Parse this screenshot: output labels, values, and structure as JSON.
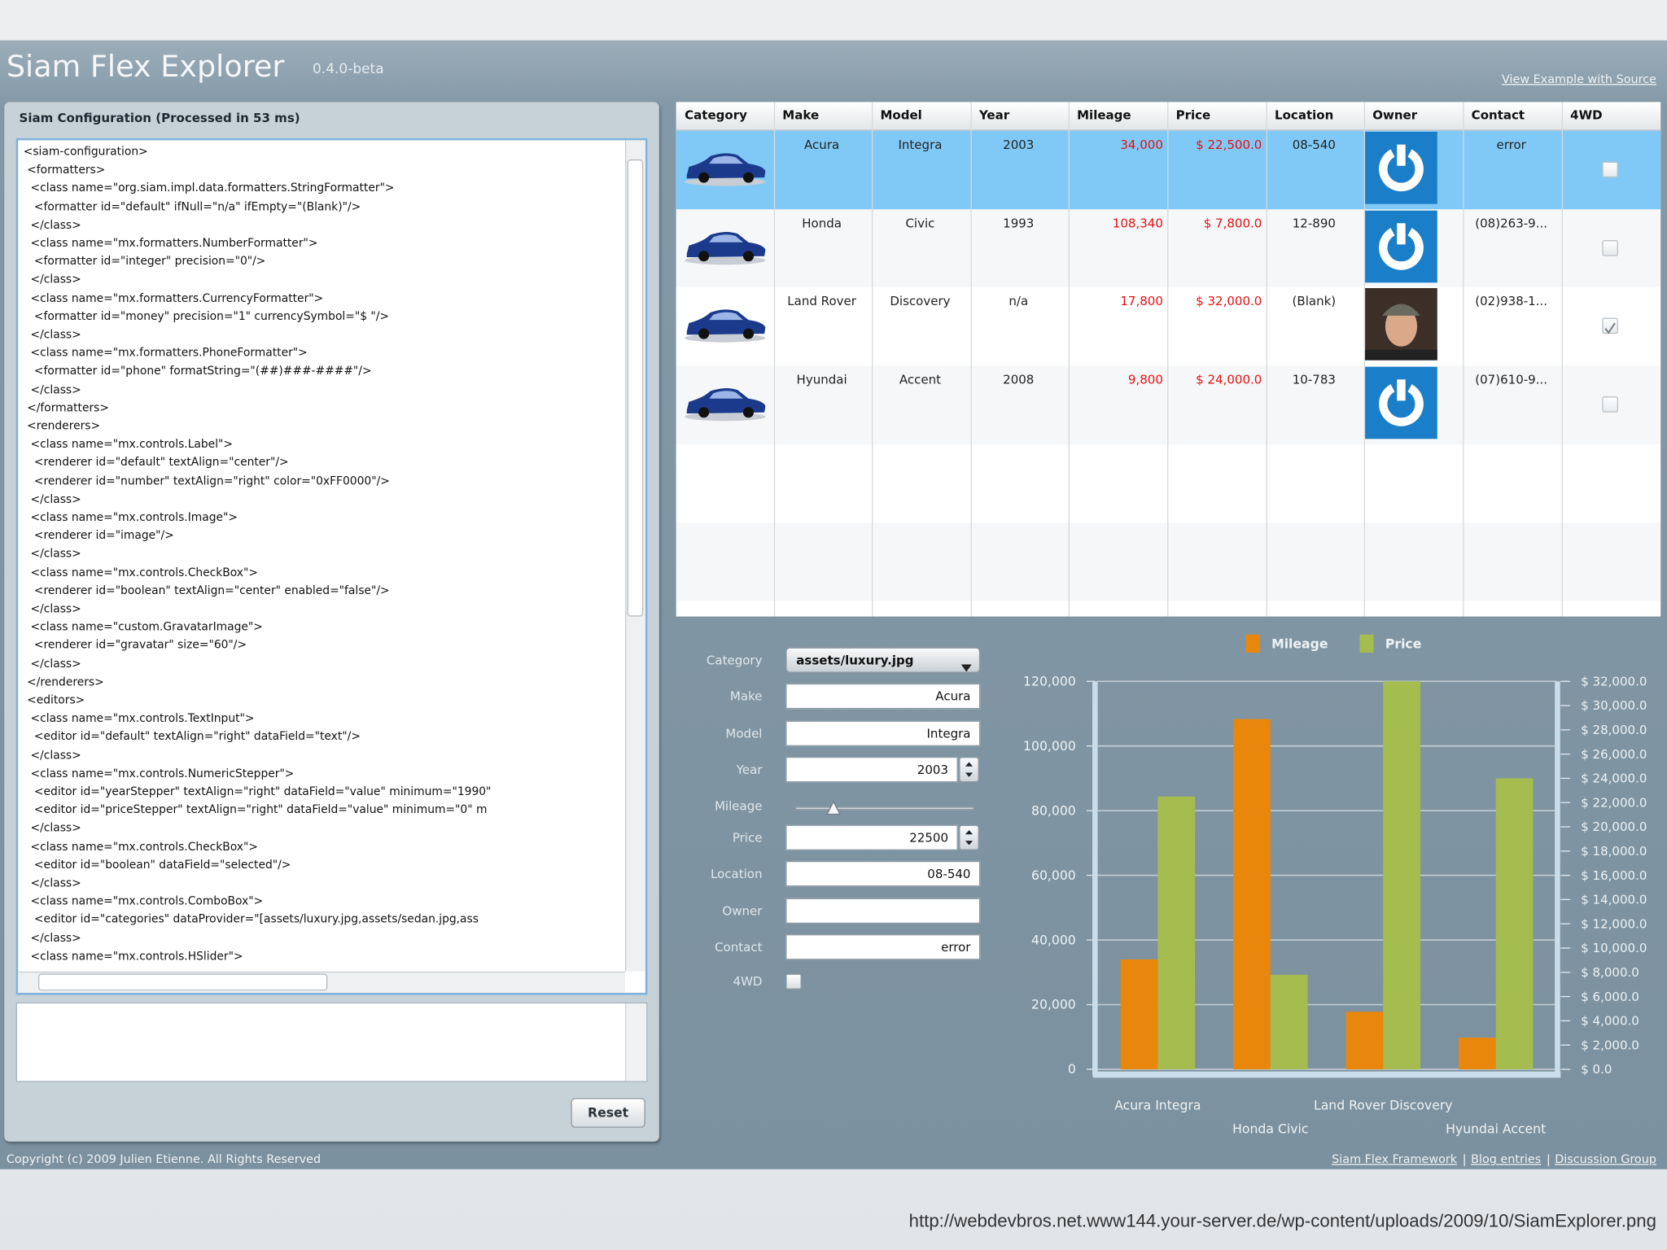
{
  "header": {
    "title": "Siam Flex Explorer",
    "version": "0.4.0-beta",
    "source_link": "View Example with Source"
  },
  "config_panel": {
    "title": "Siam Configuration (Processed in 53 ms)",
    "xml_lines": [
      "<siam-configuration>",
      " <formatters>",
      "  <class name=\"org.siam.impl.data.formatters.StringFormatter\">",
      "   <formatter id=\"default\" ifNull=\"n/a\" ifEmpty=\"(Blank)\"/>",
      "  </class>",
      "  <class name=\"mx.formatters.NumberFormatter\">",
      "   <formatter id=\"integer\" precision=\"0\"/>",
      "  </class>",
      "  <class name=\"mx.formatters.CurrencyFormatter\">",
      "   <formatter id=\"money\" precision=\"1\" currencySymbol=\"$ \"/>",
      "  </class>",
      "  <class name=\"mx.formatters.PhoneFormatter\">",
      "   <formatter id=\"phone\" formatString=\"(##)###-####\"/>",
      "  </class>",
      " </formatters>",
      " <renderers>",
      "  <class name=\"mx.controls.Label\">",
      "   <renderer id=\"default\" textAlign=\"center\"/>",
      "   <renderer id=\"number\" textAlign=\"right\" color=\"0xFF0000\"/>",
      "  </class>",
      "  <class name=\"mx.controls.Image\">",
      "   <renderer id=\"image\"/>",
      "  </class>",
      "  <class name=\"mx.controls.CheckBox\">",
      "   <renderer id=\"boolean\" textAlign=\"center\" enabled=\"false\"/>",
      "  </class>",
      "  <class name=\"custom.GravatarImage\">",
      "   <renderer id=\"gravatar\" size=\"60\"/>",
      "  </class>",
      " </renderers>",
      " <editors>",
      "  <class name=\"mx.controls.TextInput\">",
      "   <editor id=\"default\" textAlign=\"right\" dataField=\"text\"/>",
      "  </class>",
      "  <class name=\"mx.controls.NumericStepper\">",
      "   <editor id=\"yearStepper\" textAlign=\"right\" dataField=\"value\" minimum=\"1990\"",
      "   <editor id=\"priceStepper\" textAlign=\"right\" dataField=\"value\" minimum=\"0\" m",
      "  </class>",
      "  <class name=\"mx.controls.CheckBox\">",
      "   <editor id=\"boolean\" dataField=\"selected\"/>",
      "  </class>",
      "  <class name=\"mx.controls.ComboBox\">",
      "   <editor id=\"categories\" dataProvider=\"[assets/luxury.jpg,assets/sedan.jpg,ass",
      "  </class>",
      "  <class name=\"mx.controls.HSlider\">"
    ],
    "reset_button": "Reset"
  },
  "table": {
    "columns": [
      "Category",
      "Make",
      "Model",
      "Year",
      "Mileage",
      "Price",
      "Location",
      "Owner",
      "Contact",
      "4WD"
    ],
    "selected_row": 0,
    "rows": [
      {
        "make": "Acura",
        "model": "Integra",
        "year": "2003",
        "mileage": "34,000",
        "price": "$ 22,500.0",
        "location": "08-540",
        "contact": "error",
        "four_wd": false
      },
      {
        "make": "Honda",
        "model": "Civic",
        "year": "1993",
        "mileage": "108,340",
        "price": "$ 7,800.0",
        "location": "12-890",
        "contact": "(08)263-9...",
        "four_wd": false
      },
      {
        "make": "Land Rover",
        "model": "Discovery",
        "year": "n/a",
        "mileage": "17,800",
        "price": "$ 32,000.0",
        "location": "(Blank)",
        "contact": "(02)938-1...",
        "four_wd": true
      },
      {
        "make": "Hyundai",
        "model": "Accent",
        "year": "2008",
        "mileage": "9,800",
        "price": "$ 24,000.0",
        "location": "10-783",
        "contact": "(07)610-9...",
        "four_wd": false
      }
    ]
  },
  "form": {
    "fields": [
      {
        "label": "Category",
        "value": "assets/luxury.jpg"
      },
      {
        "label": "Make",
        "value": "Acura"
      },
      {
        "label": "Model",
        "value": "Integra"
      },
      {
        "label": "Year",
        "value": "2003"
      },
      {
        "label": "Mileage"
      },
      {
        "label": "Price",
        "value": "22500"
      },
      {
        "label": "Location",
        "value": "08-540"
      },
      {
        "label": "Owner"
      },
      {
        "label": "Contact",
        "value": "error"
      },
      {
        "label": "4WD"
      }
    ]
  },
  "chart_data": {
    "type": "bar",
    "categories": [
      "Acura Integra",
      "Honda Civic",
      "Land Rover Discovery",
      "Hyundai Accent"
    ],
    "series": [
      {
        "name": "Mileage",
        "color": "#e8870c",
        "values": [
          34000,
          108340,
          17800,
          9800
        ]
      },
      {
        "name": "Price",
        "color": "#a5bd4f",
        "axis": "y2",
        "values": [
          22500,
          7800,
          32000,
          24000
        ]
      }
    ],
    "ylim": [
      0,
      120000
    ],
    "yticks": [
      0,
      {
        "value": 20000,
        "label": "20,000"
      },
      {
        "value": 40000,
        "label": "40,000"
      },
      {
        "value": 60000,
        "label": "60,000"
      },
      {
        "value": 80000,
        "label": "80,000"
      },
      {
        "value": 100000,
        "label": "100,000"
      },
      {
        "value": 120000,
        "label": "120,000"
      }
    ],
    "y2lim": [
      0,
      32000
    ],
    "y2ticks": [
      {
        "value": 0,
        "label": "$ 0.0"
      },
      {
        "value": 2000,
        "label": "$ 2,000.0"
      },
      {
        "value": 4000,
        "label": "$ 4,000.0"
      },
      {
        "value": 6000,
        "label": "$ 6,000.0"
      },
      {
        "value": 8000,
        "label": "$ 8,000.0"
      },
      {
        "value": 10000,
        "label": "$ 10,000.0"
      },
      {
        "value": 12000,
        "label": "$ 12,000.0"
      },
      {
        "value": 14000,
        "label": "$ 14,000.0"
      },
      {
        "value": 16000,
        "label": "$ 16,000.0"
      },
      {
        "value": 18000,
        "label": "$ 18,000.0"
      },
      {
        "value": 20000,
        "label": "$ 20,000.0"
      },
      {
        "value": 22000,
        "label": "$ 22,000.0"
      },
      {
        "value": 24000,
        "label": "$ 24,000.0"
      },
      {
        "value": 26000,
        "label": "$ 26,000.0"
      },
      {
        "value": 28000,
        "label": "$ 28,000.0"
      },
      {
        "value": 30000,
        "label": "$ 30,000.0"
      },
      {
        "value": 32000,
        "label": "$ 32,000.0"
      }
    ],
    "grid": true,
    "legend": "top"
  },
  "footer": {
    "copyright": "Copyright (c) 2009 Julien Etienne. All Rights Reserved",
    "links": [
      "Siam Flex Framework",
      "Blog entries",
      "Discussion Group"
    ]
  },
  "caption": "http://webdevbros.net.www144.your-server.de/wp-content/uploads/2009/10/SiamExplorer.png"
}
